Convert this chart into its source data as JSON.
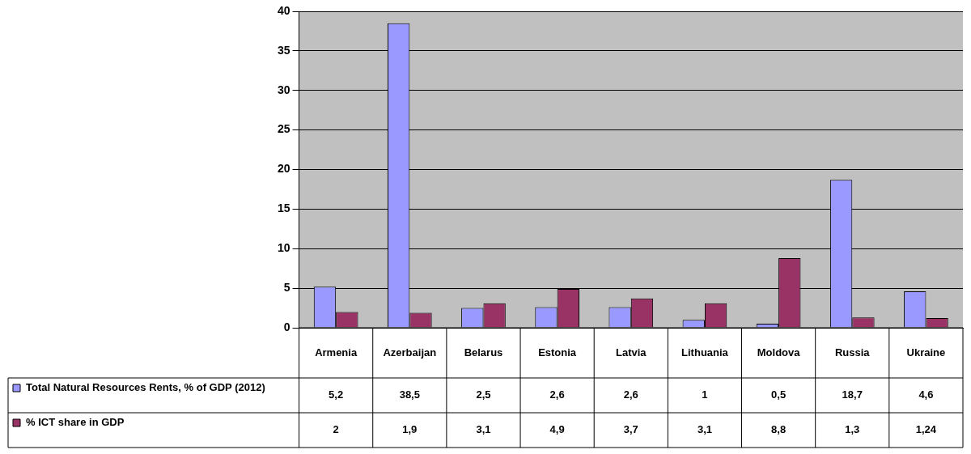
{
  "chart_data": {
    "type": "bar",
    "categories": [
      "Armenia",
      "Azerbaijan",
      "Belarus",
      "Estonia",
      "Latvia",
      "Lithuania",
      "Moldova",
      "Russia",
      "Ukraine"
    ],
    "series": [
      {
        "name": "Total Natural Resources Rents, % of GDP (2012)",
        "color": "#9999ff",
        "values": [
          5.2,
          38.5,
          2.5,
          2.6,
          2.6,
          1,
          0.5,
          18.7,
          4.6
        ],
        "value_labels": [
          "5,2",
          "38,5",
          "2,5",
          "2,6",
          "2,6",
          "1",
          "0,5",
          "18,7",
          "4,6"
        ]
      },
      {
        "name": "% ICT share in GDP",
        "color": "#993366",
        "values": [
          2,
          1.9,
          3.1,
          4.9,
          3.7,
          3.1,
          8.8,
          1.3,
          1.24
        ],
        "value_labels": [
          "2",
          "1,9",
          "3,1",
          "4,9",
          "3,7",
          "3,1",
          "8,8",
          "1,3",
          "1,24"
        ]
      }
    ],
    "ylim": [
      0,
      40
    ],
    "yticks": [
      0,
      5,
      10,
      15,
      20,
      25,
      30,
      35,
      40
    ],
    "grid": "y",
    "legend": "bottom left"
  }
}
